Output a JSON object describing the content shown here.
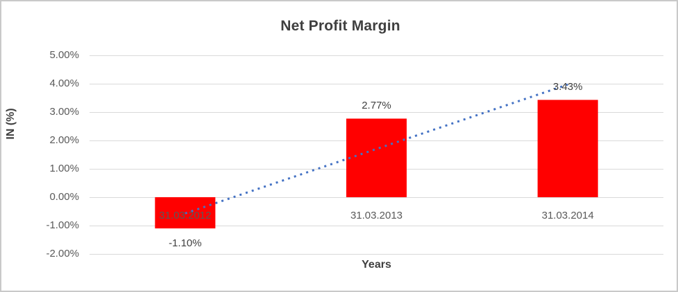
{
  "chart": {
    "title": "Net Profit Margin",
    "x_axis_title": "Years",
    "y_axis_title": "IN (%)"
  },
  "chart_data": {
    "type": "bar",
    "title": "Net Profit Margin",
    "xlabel": "Years",
    "ylabel": "IN (%)",
    "categories": [
      "31.03.2012",
      "31.03.2013",
      "31.03.2014"
    ],
    "values": [
      -1.1,
      2.77,
      3.43
    ],
    "data_labels": [
      "-1.10%",
      "2.77%",
      "3.43%"
    ],
    "ylim": [
      -2,
      5
    ],
    "ytick_values": [
      5,
      4,
      3,
      2,
      1,
      0,
      -1,
      -2
    ],
    "ytick_labels": [
      "5.00%",
      "4.00%",
      "3.00%",
      "2.00%",
      "1.00%",
      "0.00%",
      "-1.00%",
      "-2.00%"
    ],
    "grid": true,
    "legend": false,
    "bar_color": "#ff0000",
    "gridline_color": "#d9d9d9",
    "trendline": {
      "type": "linear",
      "style": "dotted",
      "color": "#4472c4",
      "start_value": -0.57,
      "end_value": 3.97
    }
  }
}
